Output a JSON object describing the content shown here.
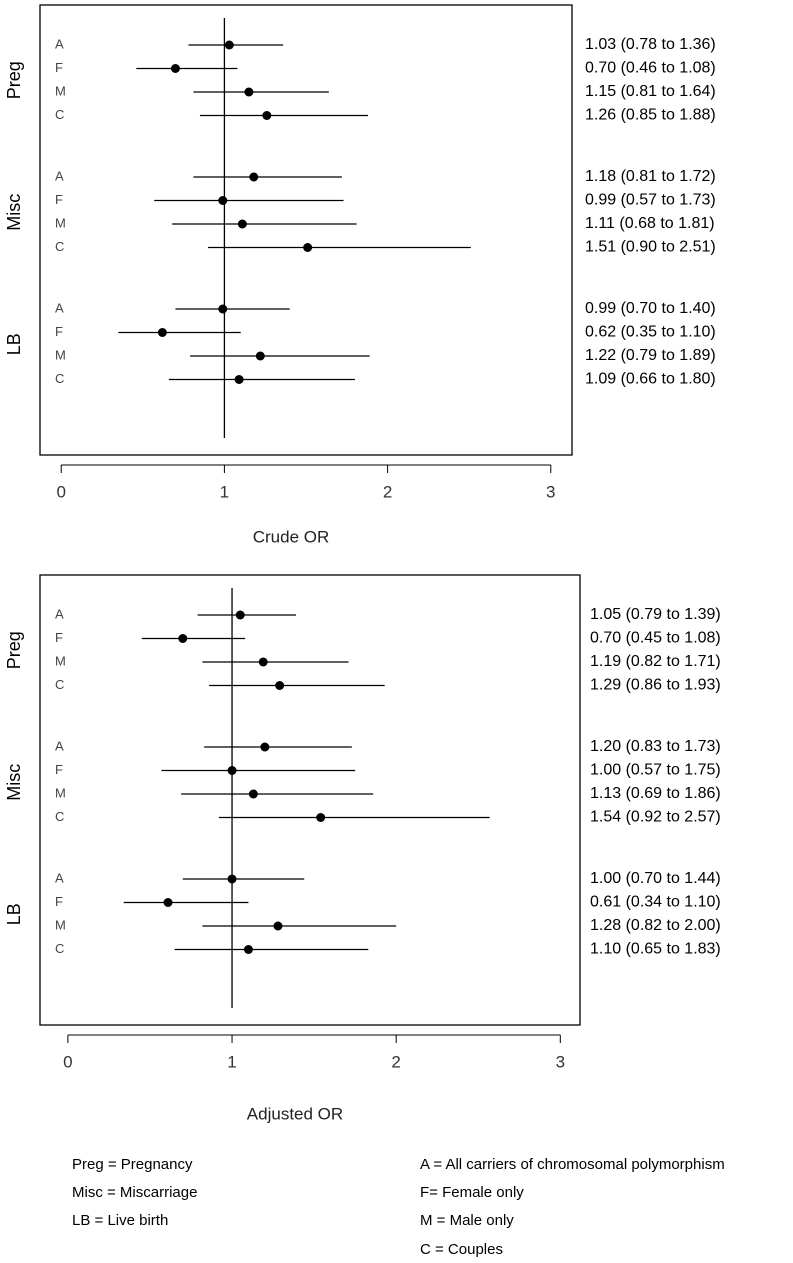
{
  "chart_data": [
    {
      "type": "forest",
      "xlabel": "Crude OR",
      "groups": [
        "Preg",
        "Misc",
        "LB"
      ],
      "categories": [
        "A",
        "F",
        "M",
        "C",
        "A",
        "F",
        "M",
        "C",
        "A",
        "F",
        "M",
        "C"
      ],
      "values": [
        1.03,
        0.7,
        1.15,
        1.26,
        1.18,
        0.99,
        1.11,
        1.51,
        0.99,
        0.62,
        1.22,
        1.09
      ],
      "lower": [
        0.78,
        0.46,
        0.81,
        0.85,
        0.81,
        0.57,
        0.68,
        0.9,
        0.7,
        0.35,
        0.79,
        0.66
      ],
      "upper": [
        1.36,
        1.08,
        1.64,
        1.88,
        1.72,
        1.73,
        1.81,
        2.51,
        1.4,
        1.1,
        1.89,
        1.8
      ],
      "value_labels": [
        "1.03 (0.78 to 1.36)",
        "0.70 (0.46 to 1.08)",
        "1.15 (0.81 to 1.64)",
        "1.26 (0.85 to 1.88)",
        "1.18 (0.81 to 1.72)",
        "0.99 (0.57 to 1.73)",
        "1.11 (0.68 to 1.81)",
        "1.51 (0.90 to 2.51)",
        "0.99 (0.70 to 1.40)",
        "0.62 (0.35 to 1.10)",
        "1.22 (0.79 to 1.89)",
        "1.09 (0.66 to 1.80)"
      ],
      "reference_line": 1,
      "xlim": [
        -0.13,
        3.13
      ],
      "xticks": [
        0,
        1,
        2,
        3
      ],
      "color": "#000000"
    },
    {
      "type": "forest",
      "xlabel": "Adjusted OR",
      "groups": [
        "Preg",
        "Misc",
        "LB"
      ],
      "categories": [
        "A",
        "F",
        "M",
        "C",
        "A",
        "F",
        "M",
        "C",
        "A",
        "F",
        "M",
        "C"
      ],
      "values": [
        1.05,
        0.7,
        1.19,
        1.29,
        1.2,
        1.0,
        1.13,
        1.54,
        1.0,
        0.61,
        1.28,
        1.1
      ],
      "lower": [
        0.79,
        0.45,
        0.82,
        0.86,
        0.83,
        0.57,
        0.69,
        0.92,
        0.7,
        0.34,
        0.82,
        0.65
      ],
      "upper": [
        1.39,
        1.08,
        1.71,
        1.93,
        1.73,
        1.75,
        1.86,
        2.57,
        1.44,
        1.1,
        2.0,
        1.83
      ],
      "value_labels": [
        "1.05 (0.79 to 1.39)",
        "0.70 (0.45 to 1.08)",
        "1.19 (0.82 to 1.71)",
        "1.29 (0.86 to 1.93)",
        "1.20 (0.83 to 1.73)",
        "1.00 (0.57 to 1.75)",
        "1.13 (0.69 to 1.86)",
        "1.54 (0.92 to 2.57)",
        "1.00 (0.70 to 1.44)",
        "0.61 (0.34 to 1.10)",
        "1.28 (0.82 to 2.00)",
        "1.10 (0.65 to 1.83)"
      ],
      "reference_line": 1,
      "xlim": [
        -0.17,
        3.12
      ],
      "xticks": [
        0,
        1,
        2,
        3
      ],
      "color": "#000000"
    }
  ],
  "footnotes": {
    "left": [
      "Preg = Pregnancy",
      "Misc = Miscarriage",
      "LB = Live birth"
    ],
    "right": [
      "A = All carriers of chromosomal polymorphism",
      "F= Female only",
      "M = Male only",
      "C = Couples"
    ]
  }
}
